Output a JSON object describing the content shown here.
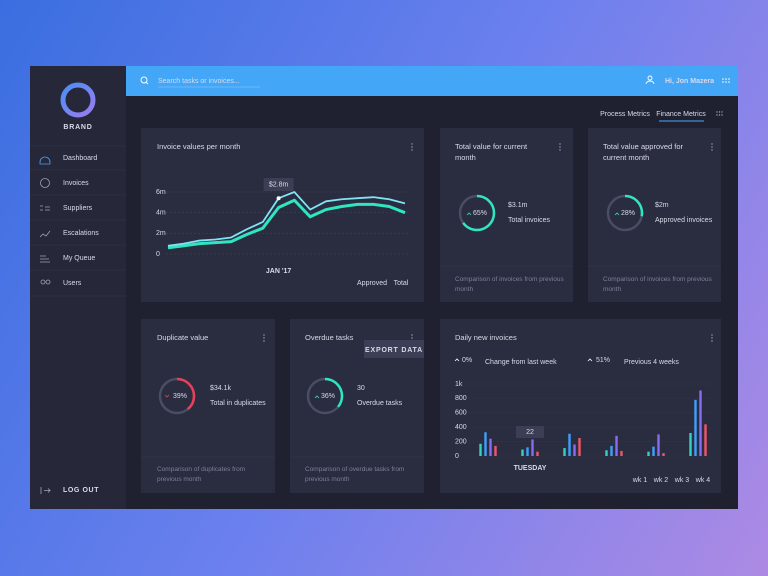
{
  "brand": "BRAND",
  "search_placeholder": "Search tasks or invoices...",
  "user": "Hi, Jon Mazera",
  "nav": [
    "Dashboard",
    "Invoices",
    "Suppliers",
    "Escalations",
    "My Queue",
    "Users"
  ],
  "logout": "LOG OUT",
  "tabs": [
    "Process Metrics",
    "Finance Metrics"
  ],
  "cards": [
    {
      "title": "Total value for current month",
      "donut": {
        "value": 65,
        "label": "65%"
      },
      "color": "#2ee6c0",
      "amount": "$3.1m",
      "caption": "Total invoices",
      "footer": "Comparison of invoices from previous month"
    },
    {
      "title": "Total value approved for current month",
      "donut": {
        "value": 28,
        "label": "28%"
      },
      "color": "#2ee6c0",
      "amount": "$2m",
      "caption": "Approved invoices",
      "footer": "Comparison of invoices from previous month"
    },
    {
      "title": "Duplicate value",
      "donut": {
        "value": 39,
        "label": "39%"
      },
      "color": "#e8405a",
      "amount": "$34.1k",
      "caption": "Total in duplicates",
      "footer": "Comparison of duplicates from previous month"
    },
    {
      "title": "Overdue tasks",
      "donut": {
        "value": 36,
        "label": "36%"
      },
      "color": "#2ee6c0",
      "amount": "30",
      "caption": "Overdue tasks",
      "footer": "Comparison of overdue tasks from previous month"
    }
  ],
  "export_button": "EXPORT DATA",
  "chart_data": [
    {
      "type": "line",
      "title": "Invoice values per month",
      "categories": [
        null,
        null,
        null,
        null,
        null,
        null,
        null,
        "JAN '17",
        null,
        null,
        null,
        null,
        null,
        null,
        null,
        null
      ],
      "series": [
        {
          "name": "Approved",
          "color": "#2ee6c0",
          "values": [
            0.6,
            0.8,
            1.0,
            1.1,
            1.2,
            1.9,
            2.5,
            4.5,
            5.2,
            3.6,
            4.3,
            4.6,
            4.8,
            4.8,
            4.6,
            4.0
          ]
        },
        {
          "name": "Total",
          "color": "#7fe3f5",
          "values": [
            0.8,
            1.0,
            1.3,
            1.4,
            1.6,
            2.4,
            3.1,
            5.4,
            6.0,
            4.3,
            5.1,
            5.3,
            5.4,
            5.5,
            5.3,
            4.9
          ]
        }
      ],
      "annotation": "$2.8m",
      "ylim": [
        0,
        6
      ],
      "yticks": [
        0,
        {
          "value": 2,
          "label": "2m"
        },
        {
          "value": 4,
          "label": "4m"
        },
        {
          "value": 6,
          "label": "6m"
        }
      ],
      "grid": true
    },
    {
      "type": "bar",
      "title": "Daily new invoices",
      "stats": [
        {
          "value": "0%",
          "label": "Change from last week"
        },
        {
          "value": "51%",
          "label": "Previous 4 weeks"
        }
      ],
      "categories": [
        null,
        "TUESDAY",
        null,
        null,
        null,
        null
      ],
      "series": [
        {
          "name": "wk 1",
          "color": "#33d1c4",
          "values": [
            170,
            90,
            110,
            80,
            60,
            320
          ]
        },
        {
          "name": "wk 2",
          "color": "#3d9fff",
          "values": [
            330,
            120,
            310,
            140,
            130,
            780
          ]
        },
        {
          "name": "wk 3",
          "color": "#8a6cf0",
          "values": [
            240,
            230,
            160,
            280,
            300,
            910
          ]
        },
        {
          "name": "wk 4",
          "color": "#f0556a",
          "values": [
            140,
            60,
            250,
            70,
            40,
            440
          ]
        }
      ],
      "annotation": "22",
      "ylim": [
        0,
        1000
      ],
      "yticks": [
        0,
        200,
        400,
        600,
        800,
        {
          "value": 1000,
          "label": "1k"
        }
      ],
      "grid": true
    }
  ]
}
